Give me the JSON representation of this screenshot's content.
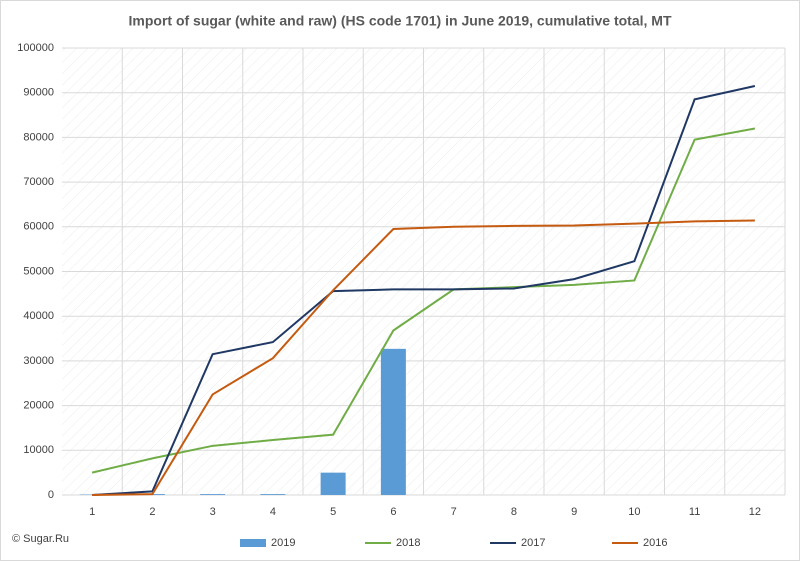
{
  "chart_data": {
    "type": "combo",
    "title": "Import of sugar (white and raw) (HS code 1701) in June 2019, cumulative total, MT",
    "source": "© Sugar.Ru",
    "categories": [
      "1",
      "2",
      "3",
      "4",
      "5",
      "6",
      "7",
      "8",
      "9",
      "10",
      "11",
      "12"
    ],
    "series": [
      {
        "name": "2019",
        "type": "bar",
        "color": "#5b9bd5",
        "values": [
          100,
          200,
          200,
          200,
          5000,
          32700,
          null,
          null,
          null,
          null,
          null,
          null
        ]
      },
      {
        "name": "2018",
        "type": "line",
        "color": "#70ad47",
        "values": [
          5000,
          8200,
          11000,
          12300,
          13500,
          36800,
          46000,
          46500,
          47000,
          48000,
          79500,
          82000
        ]
      },
      {
        "name": "2017",
        "type": "line",
        "color": "#203864",
        "values": [
          0,
          800,
          31500,
          34200,
          45600,
          46000,
          46000,
          46200,
          48300,
          52300,
          88500,
          91500
        ]
      },
      {
        "name": "2016",
        "type": "line",
        "color": "#c55a11",
        "values": [
          0,
          200,
          22500,
          30600,
          45800,
          59500,
          60000,
          60200,
          60300,
          60700,
          61200,
          61400
        ]
      }
    ],
    "ylim": [
      0,
      100000
    ],
    "yticks": [
      0,
      10000,
      20000,
      30000,
      40000,
      50000,
      60000,
      70000,
      80000,
      90000,
      100000
    ],
    "grid": true,
    "legend": "bottom"
  }
}
